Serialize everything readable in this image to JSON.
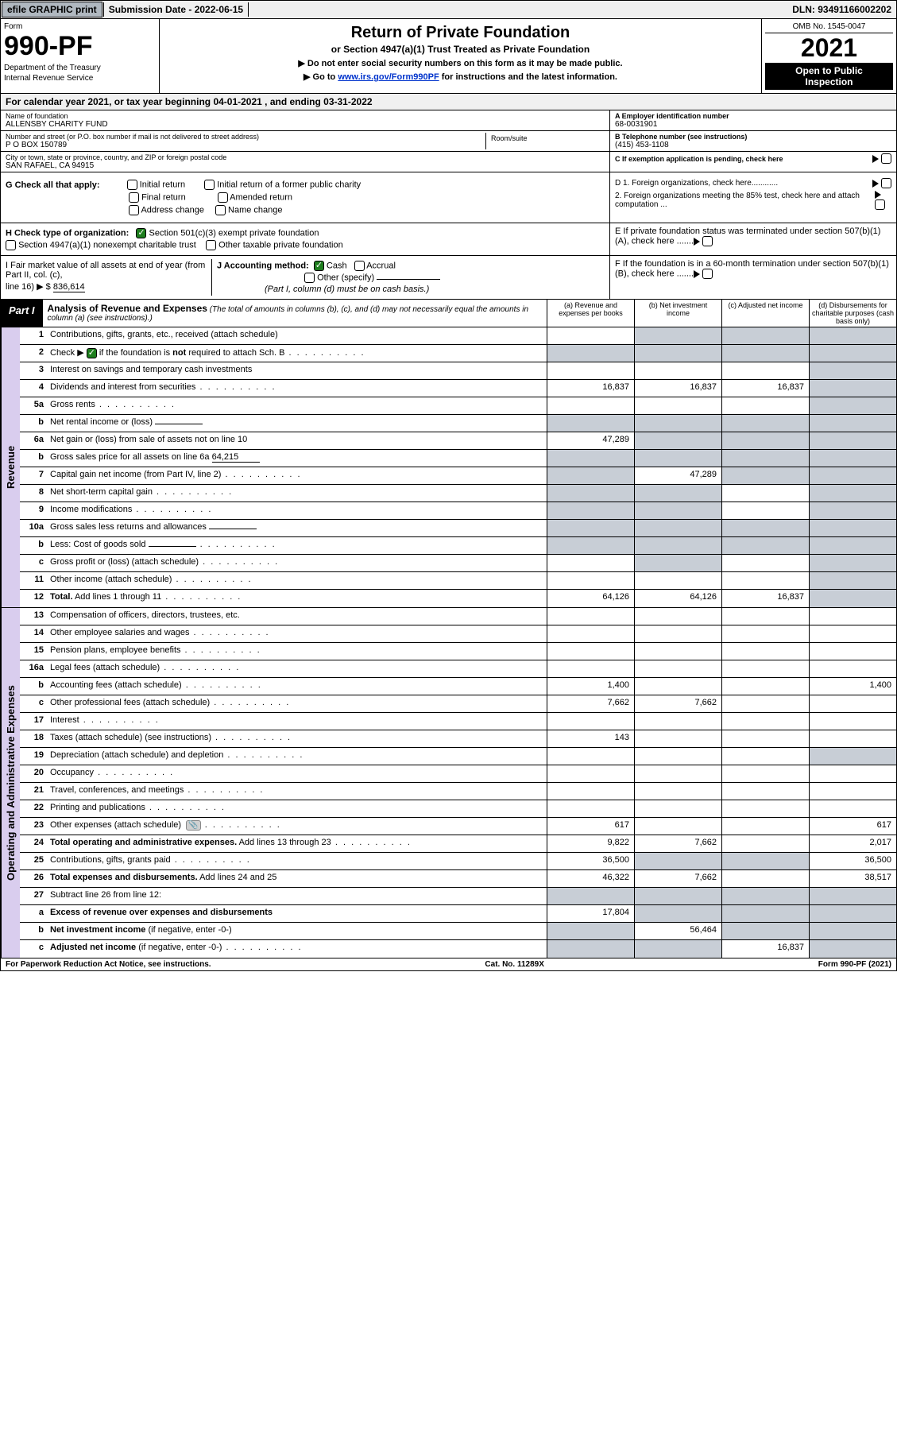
{
  "colors": {
    "topbar_btn_bg": "#b0b8c0",
    "side_label_bg": "#d9cdee",
    "grey_cell": "#c8ced6",
    "black": "#000000",
    "white": "#ffffff",
    "link": "#0033cc",
    "check_green": "#1e7e1e"
  },
  "topbar": {
    "efile": "efile GRAPHIC print",
    "submission_label": "Submission Date - 2022-06-15",
    "dln": "DLN: 93491166002202"
  },
  "header": {
    "form_label": "Form",
    "form_number": "990-PF",
    "dept1": "Department of the Treasury",
    "dept2": "Internal Revenue Service",
    "title": "Return of Private Foundation",
    "subtitle": "or Section 4947(a)(1) Trust Treated as Private Foundation",
    "note1": "▶ Do not enter social security numbers on this form as it may be made public.",
    "note2_pre": "▶ Go to ",
    "note2_link": "www.irs.gov/Form990PF",
    "note2_post": " for instructions and the latest information.",
    "omb": "OMB No. 1545-0047",
    "year": "2021",
    "inspect1": "Open to Public",
    "inspect2": "Inspection"
  },
  "calyear": "For calendar year 2021, or tax year beginning 04-01-2021          , and ending 03-31-2022",
  "info": {
    "name_lbl": "Name of foundation",
    "name_val": "ALLENSBY CHARITY FUND",
    "addr_lbl": "Number and street (or P.O. box number if mail is not delivered to street address)",
    "addr_val": "P O BOX 150789",
    "room_lbl": "Room/suite",
    "city_lbl": "City or town, state or province, country, and ZIP or foreign postal code",
    "city_val": "SAN RAFAEL, CA  94915",
    "ein_lbl": "A Employer identification number",
    "ein_val": "68-0031901",
    "phone_lbl": "B Telephone number (see instructions)",
    "phone_val": "(415) 453-1108",
    "c_lbl": "C If exemption application is pending, check here"
  },
  "g_section": {
    "label": "G Check all that apply:",
    "opts": [
      "Initial return",
      "Initial return of a former public charity",
      "Final return",
      "Amended return",
      "Address change",
      "Name change"
    ]
  },
  "h_section": {
    "label": "H Check type of organization:",
    "opt1": "Section 501(c)(3) exempt private foundation",
    "opt2": "Section 4947(a)(1) nonexempt charitable trust",
    "opt3": "Other taxable private foundation"
  },
  "i_section": {
    "label": "I Fair market value of all assets at end of year (from Part II, col. (c),",
    "line": "line 16) ▶ $",
    "val": "836,614"
  },
  "j_section": {
    "label": "J Accounting method:",
    "cash": "Cash",
    "accrual": "Accrual",
    "other": "Other (specify)",
    "note": "(Part I, column (d) must be on cash basis.)"
  },
  "d_section": {
    "d1": "D 1. Foreign organizations, check here............",
    "d2": "2. Foreign organizations meeting the 85% test, check here and attach computation ...",
    "e": "E  If private foundation status was terminated under section 507(b)(1)(A), check here .......",
    "f": "F  If the foundation is in a 60-month termination under section 507(b)(1)(B), check here ......."
  },
  "part1": {
    "label": "Part I",
    "title": "Analysis of Revenue and Expenses",
    "note": "(The total of amounts in columns (b), (c), and (d) may not necessarily equal the amounts in column (a) (see instructions).)",
    "col_a": "(a)  Revenue and expenses per books",
    "col_b": "(b)  Net investment income",
    "col_c": "(c)  Adjusted net income",
    "col_d": "(d)  Disbursements for charitable purposes (cash basis only)"
  },
  "side_labels": {
    "revenue": "Revenue",
    "expenses": "Operating and Administrative Expenses"
  },
  "rows": [
    {
      "n": "1",
      "d": "g",
      "a": "",
      "b": "g",
      "c": "g"
    },
    {
      "n": "2",
      "d": "g",
      "dots": true,
      "a": "g",
      "b": "g",
      "c": "g"
    },
    {
      "n": "3",
      "d": "g",
      "a": "",
      "b": "",
      "c": ""
    },
    {
      "n": "4",
      "d": "g",
      "dots": true,
      "a": "16,837",
      "b": "16,837",
      "c": "16,837"
    },
    {
      "n": "5a",
      "d": "g",
      "dots": true,
      "a": "",
      "b": "",
      "c": ""
    },
    {
      "n": "b",
      "d": "g",
      "uline": true,
      "a": "g",
      "b": "g",
      "c": "g"
    },
    {
      "n": "6a",
      "d": "g",
      "a": "47,289",
      "b": "g",
      "c": "g"
    },
    {
      "n": "b",
      "d": "g",
      "uline": true,
      "uval": "64,215",
      "a": "g",
      "b": "g",
      "c": "g"
    },
    {
      "n": "7",
      "d": "g",
      "dots": true,
      "a": "g",
      "b": "47,289",
      "c": "g"
    },
    {
      "n": "8",
      "d": "g",
      "dots": true,
      "a": "g",
      "b": "g",
      "c": ""
    },
    {
      "n": "9",
      "d": "g",
      "dots": true,
      "a": "g",
      "b": "g",
      "c": ""
    },
    {
      "n": "10a",
      "d": "g",
      "uline": true,
      "a": "g",
      "b": "g",
      "c": "g"
    },
    {
      "n": "b",
      "d": "g",
      "dots": true,
      "uline": true,
      "a": "g",
      "b": "g",
      "c": "g"
    },
    {
      "n": "c",
      "d": "g",
      "dots": true,
      "a": "",
      "b": "g",
      "c": ""
    },
    {
      "n": "11",
      "d": "g",
      "dots": true,
      "a": "",
      "b": "",
      "c": ""
    },
    {
      "n": "12",
      "d": "g",
      "dots": true,
      "a": "64,126",
      "b": "64,126",
      "c": "16,837"
    },
    {
      "n": "13",
      "d": "",
      "a": "",
      "b": "",
      "c": ""
    },
    {
      "n": "14",
      "d": "",
      "dots": true,
      "a": "",
      "b": "",
      "c": ""
    },
    {
      "n": "15",
      "d": "",
      "dots": true,
      "a": "",
      "b": "",
      "c": ""
    },
    {
      "n": "16a",
      "d": "",
      "dots": true,
      "a": "",
      "b": "",
      "c": ""
    },
    {
      "n": "b",
      "d": "1,400",
      "dots": true,
      "a": "1,400",
      "b": "",
      "c": ""
    },
    {
      "n": "c",
      "d": "",
      "dots": true,
      "a": "7,662",
      "b": "7,662",
      "c": ""
    },
    {
      "n": "17",
      "d": "",
      "dots": true,
      "a": "",
      "b": "",
      "c": ""
    },
    {
      "n": "18",
      "d": "",
      "dots": true,
      "a": "143",
      "b": "",
      "c": ""
    },
    {
      "n": "19",
      "d": "g",
      "dots": true,
      "a": "",
      "b": "",
      "c": ""
    },
    {
      "n": "20",
      "d": "",
      "dots": true,
      "a": "",
      "b": "",
      "c": ""
    },
    {
      "n": "21",
      "d": "",
      "dots": true,
      "a": "",
      "b": "",
      "c": ""
    },
    {
      "n": "22",
      "d": "",
      "dots": true,
      "a": "",
      "b": "",
      "c": ""
    },
    {
      "n": "23",
      "d": "617",
      "dots": true,
      "icon": true,
      "a": "617",
      "b": "",
      "c": ""
    },
    {
      "n": "24",
      "d": "2,017",
      "dots": true,
      "a": "9,822",
      "b": "7,662",
      "c": ""
    },
    {
      "n": "25",
      "d": "36,500",
      "dots": true,
      "a": "36,500",
      "b": "g",
      "c": "g"
    },
    {
      "n": "26",
      "d": "38,517",
      "a": "46,322",
      "b": "7,662",
      "c": ""
    },
    {
      "n": "27",
      "d": "g",
      "a": "g",
      "b": "g",
      "c": "g"
    },
    {
      "n": "a",
      "d": "g",
      "a": "17,804",
      "b": "g",
      "c": "g"
    },
    {
      "n": "b",
      "d": "g",
      "a": "g",
      "b": "56,464",
      "c": "g"
    },
    {
      "n": "c",
      "d": "g",
      "dots": true,
      "a": "g",
      "b": "g",
      "c": "16,837"
    }
  ],
  "revenue_end_idx": 15,
  "footer": {
    "left": "For Paperwork Reduction Act Notice, see instructions.",
    "mid": "Cat. No. 11289X",
    "right": "Form 990-PF (2021)"
  }
}
